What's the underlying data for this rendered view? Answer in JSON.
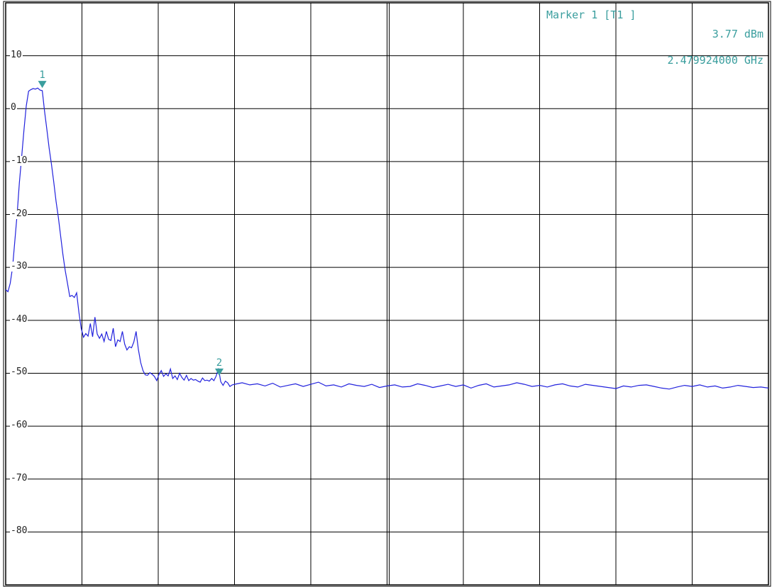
{
  "marker_readout": {
    "title": "Marker 1 [T1 ]",
    "level": "3.77 dBm",
    "frequency": "2.479924000 GHz"
  },
  "colors": {
    "trace": "#2222dd",
    "marker": "#3a9e9e",
    "grid": "#000000",
    "background": "#ffffff"
  },
  "chart_data": {
    "type": "line",
    "title": "",
    "xlabel": "",
    "ylabel": "",
    "ylim": [
      -90,
      20
    ],
    "xlim": [
      0,
      10
    ],
    "x_divisions": 10,
    "y_ticks": [
      10,
      0,
      -10,
      -20,
      -30,
      -40,
      -50,
      -60,
      -70,
      -80
    ],
    "y_tick_labels": [
      "10",
      "0",
      "-10",
      "-20",
      "-30",
      "-40",
      "-50",
      "-60",
      "-70",
      "-80"
    ],
    "grid": true,
    "series": [
      {
        "x": [
          0.0,
          0.03,
          0.06,
          0.09,
          0.12,
          0.15,
          0.18,
          0.21,
          0.24,
          0.27,
          0.3,
          0.33,
          0.36,
          0.39,
          0.42,
          0.45,
          0.48,
          0.51,
          0.54,
          0.57,
          0.6,
          0.63,
          0.66,
          0.69,
          0.72,
          0.75,
          0.78,
          0.81,
          0.84,
          0.87,
          0.9,
          0.93,
          0.96,
          0.99,
          1.02,
          1.05,
          1.08,
          1.11,
          1.14,
          1.17,
          1.2,
          1.23,
          1.26,
          1.29,
          1.32,
          1.35,
          1.38,
          1.41,
          1.44,
          1.47,
          1.5,
          1.53,
          1.56,
          1.59,
          1.62,
          1.65,
          1.68,
          1.71,
          1.74,
          1.77,
          1.8,
          1.83,
          1.86,
          1.89,
          1.92,
          1.95,
          1.98,
          2.01,
          2.04,
          2.07,
          2.1,
          2.13,
          2.16,
          2.19,
          2.22,
          2.25,
          2.28,
          2.31,
          2.34,
          2.37,
          2.4,
          2.43,
          2.46,
          2.49,
          2.52,
          2.55,
          2.58,
          2.61,
          2.64,
          2.67,
          2.7,
          2.73,
          2.76,
          2.79,
          2.82,
          2.85,
          2.88,
          2.91,
          2.94,
          2.97,
          3.0,
          3.1,
          3.2,
          3.3,
          3.4,
          3.5,
          3.6,
          3.7,
          3.8,
          3.9,
          4.0,
          4.1,
          4.2,
          4.3,
          4.4,
          4.5,
          4.6,
          4.7,
          4.8,
          4.9,
          5.0,
          5.1,
          5.2,
          5.3,
          5.4,
          5.5,
          5.6,
          5.7,
          5.8,
          5.9,
          6.0,
          6.1,
          6.2,
          6.3,
          6.4,
          6.5,
          6.6,
          6.7,
          6.8,
          6.9,
          7.0,
          7.1,
          7.2,
          7.3,
          7.4,
          7.5,
          7.6,
          7.7,
          7.8,
          7.9,
          8.0,
          8.1,
          8.2,
          8.3,
          8.4,
          8.5,
          8.6,
          8.7,
          8.8,
          8.9,
          9.0,
          9.1,
          9.2,
          9.3,
          9.4,
          9.5,
          9.6,
          9.7,
          9.8,
          9.9,
          10.0
        ],
        "y": [
          -34.2,
          -34.6,
          -33.0,
          -30.0,
          -25.0,
          -20.0,
          -14.0,
          -9.0,
          -4.0,
          0.5,
          3.3,
          3.6,
          3.8,
          3.7,
          3.9,
          3.5,
          3.4,
          -0.5,
          -4.0,
          -7.5,
          -10.5,
          -13.8,
          -17.5,
          -20.5,
          -24.0,
          -27.5,
          -30.5,
          -33.0,
          -35.5,
          -35.3,
          -35.7,
          -34.8,
          -38.5,
          -41.5,
          -43.2,
          -42.5,
          -43.0,
          -40.6,
          -43.1,
          -39.4,
          -42.6,
          -43.4,
          -42.6,
          -44.0,
          -42.1,
          -43.6,
          -43.8,
          -41.5,
          -45.0,
          -43.7,
          -44.0,
          -42.1,
          -44.5,
          -45.6,
          -45.0,
          -45.2,
          -44.1,
          -42.1,
          -45.5,
          -48.0,
          -49.5,
          -50.3,
          -50.4,
          -49.9,
          -50.2,
          -50.6,
          -51.4,
          -50.2,
          -49.5,
          -50.6,
          -50.1,
          -50.5,
          -49.2,
          -51.0,
          -50.5,
          -51.2,
          -50.0,
          -50.8,
          -51.3,
          -50.4,
          -51.4,
          -51.0,
          -51.3,
          -51.2,
          -51.5,
          -51.7,
          -50.9,
          -51.4,
          -51.3,
          -51.5,
          -51.0,
          -51.4,
          -50.5,
          -49.1,
          -51.6,
          -52.3,
          -51.5,
          -51.8,
          -52.5,
          -52.2,
          -52.1,
          -51.8,
          -52.2,
          -52.0,
          -52.4,
          -51.9,
          -52.6,
          -52.3,
          -52.0,
          -52.5,
          -52.1,
          -51.7,
          -52.4,
          -52.2,
          -52.6,
          -52.0,
          -52.3,
          -52.5,
          -52.1,
          -52.7,
          -52.4,
          -52.2,
          -52.6,
          -52.5,
          -52.0,
          -52.3,
          -52.7,
          -52.4,
          -52.1,
          -52.5,
          -52.2,
          -52.8,
          -52.3,
          -52.0,
          -52.6,
          -52.4,
          -52.2,
          -51.8,
          -52.1,
          -52.5,
          -52.3,
          -52.6,
          -52.2,
          -52.0,
          -52.4,
          -52.6,
          -52.1,
          -52.3,
          -52.5,
          -52.7,
          -52.9,
          -52.4,
          -52.6,
          -52.3,
          -52.2,
          -52.5,
          -52.8,
          -53.0,
          -52.6,
          -52.3,
          -52.5,
          -52.2,
          -52.6,
          -52.4,
          -52.8,
          -52.6,
          -52.3,
          -52.5,
          -52.7,
          -52.6,
          -52.8
        ]
      }
    ],
    "markers": [
      {
        "label": "1",
        "x": 0.48,
        "y": 3.77
      },
      {
        "label": "2",
        "x": 2.8,
        "y": -50.6
      }
    ]
  }
}
